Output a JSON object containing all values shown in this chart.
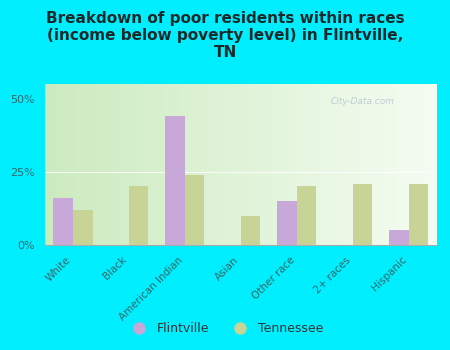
{
  "title": "Breakdown of poor residents within races\n(income below poverty level) in Flintville,\nTN",
  "categories": [
    "White",
    "Black",
    "American Indian",
    "Asian",
    "Other race",
    "2+ races",
    "Hispanic"
  ],
  "flintville": [
    16,
    0,
    44,
    0,
    15,
    0,
    5
  ],
  "tennessee": [
    12,
    20,
    24,
    10,
    20,
    21,
    21
  ],
  "flintville_color": "#c8a8d8",
  "tennessee_color": "#c8d496",
  "bar_width": 0.35,
  "ylim": [
    0,
    55
  ],
  "yticks": [
    0,
    25,
    50
  ],
  "ytick_labels": [
    "0%",
    "25%",
    "50%"
  ],
  "background_color": "#00eeff",
  "title_fontsize": 11,
  "watermark": "City-Data.com",
  "legend_flintville": "Flintville",
  "legend_tennessee": "Tennessee",
  "title_color": "#1a2a2a",
  "tick_label_color": "#336666"
}
